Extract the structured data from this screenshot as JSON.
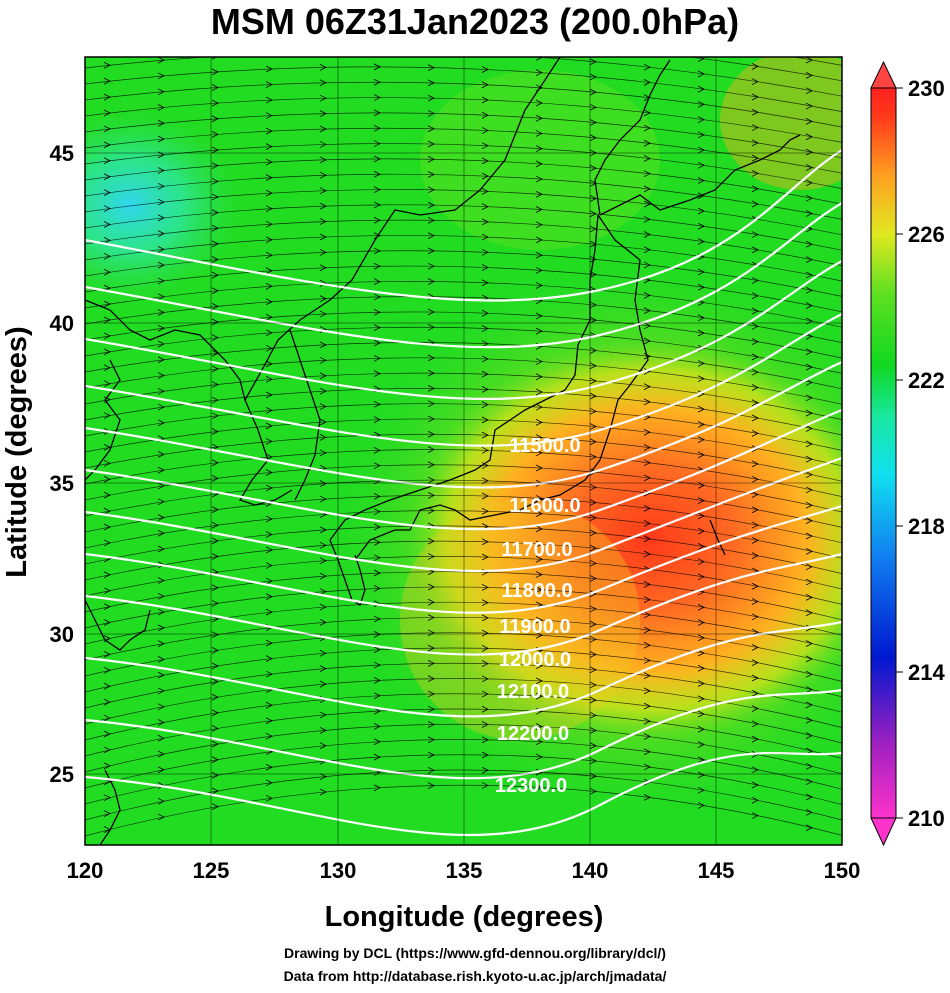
{
  "title": "MSM 06Z31Jan2023 (200.0hPa)",
  "x_axis": {
    "label": "Longitude (degrees)",
    "ticks": [
      "120",
      "125",
      "130",
      "135",
      "140",
      "145",
      "150"
    ]
  },
  "y_axis": {
    "label": "Latitude  (degrees)",
    "ticks": [
      "25",
      "30",
      "35",
      "40",
      "45"
    ]
  },
  "colorbar": {
    "ticks": [
      "230",
      "226",
      "222",
      "218",
      "214",
      "210"
    ]
  },
  "contour_labels": [
    "11500.0",
    "11600.0",
    "11700.0",
    "11800.0",
    "11900.0",
    "12000.0",
    "12100.0",
    "12200.0",
    "12300.0"
  ],
  "credits": [
    "Drawing by DCL (https://www.gfd-dennou.org/library/dcl/)",
    "Data from http://database.rish.kyoto-u.ac.jp/arch/jmadata/"
  ],
  "colors": {
    "background_field": "#22dd22",
    "warm_core": "#ff5522",
    "cold_region": "#22ccff",
    "contour": "#ffffff",
    "coast": "#000000"
  }
}
